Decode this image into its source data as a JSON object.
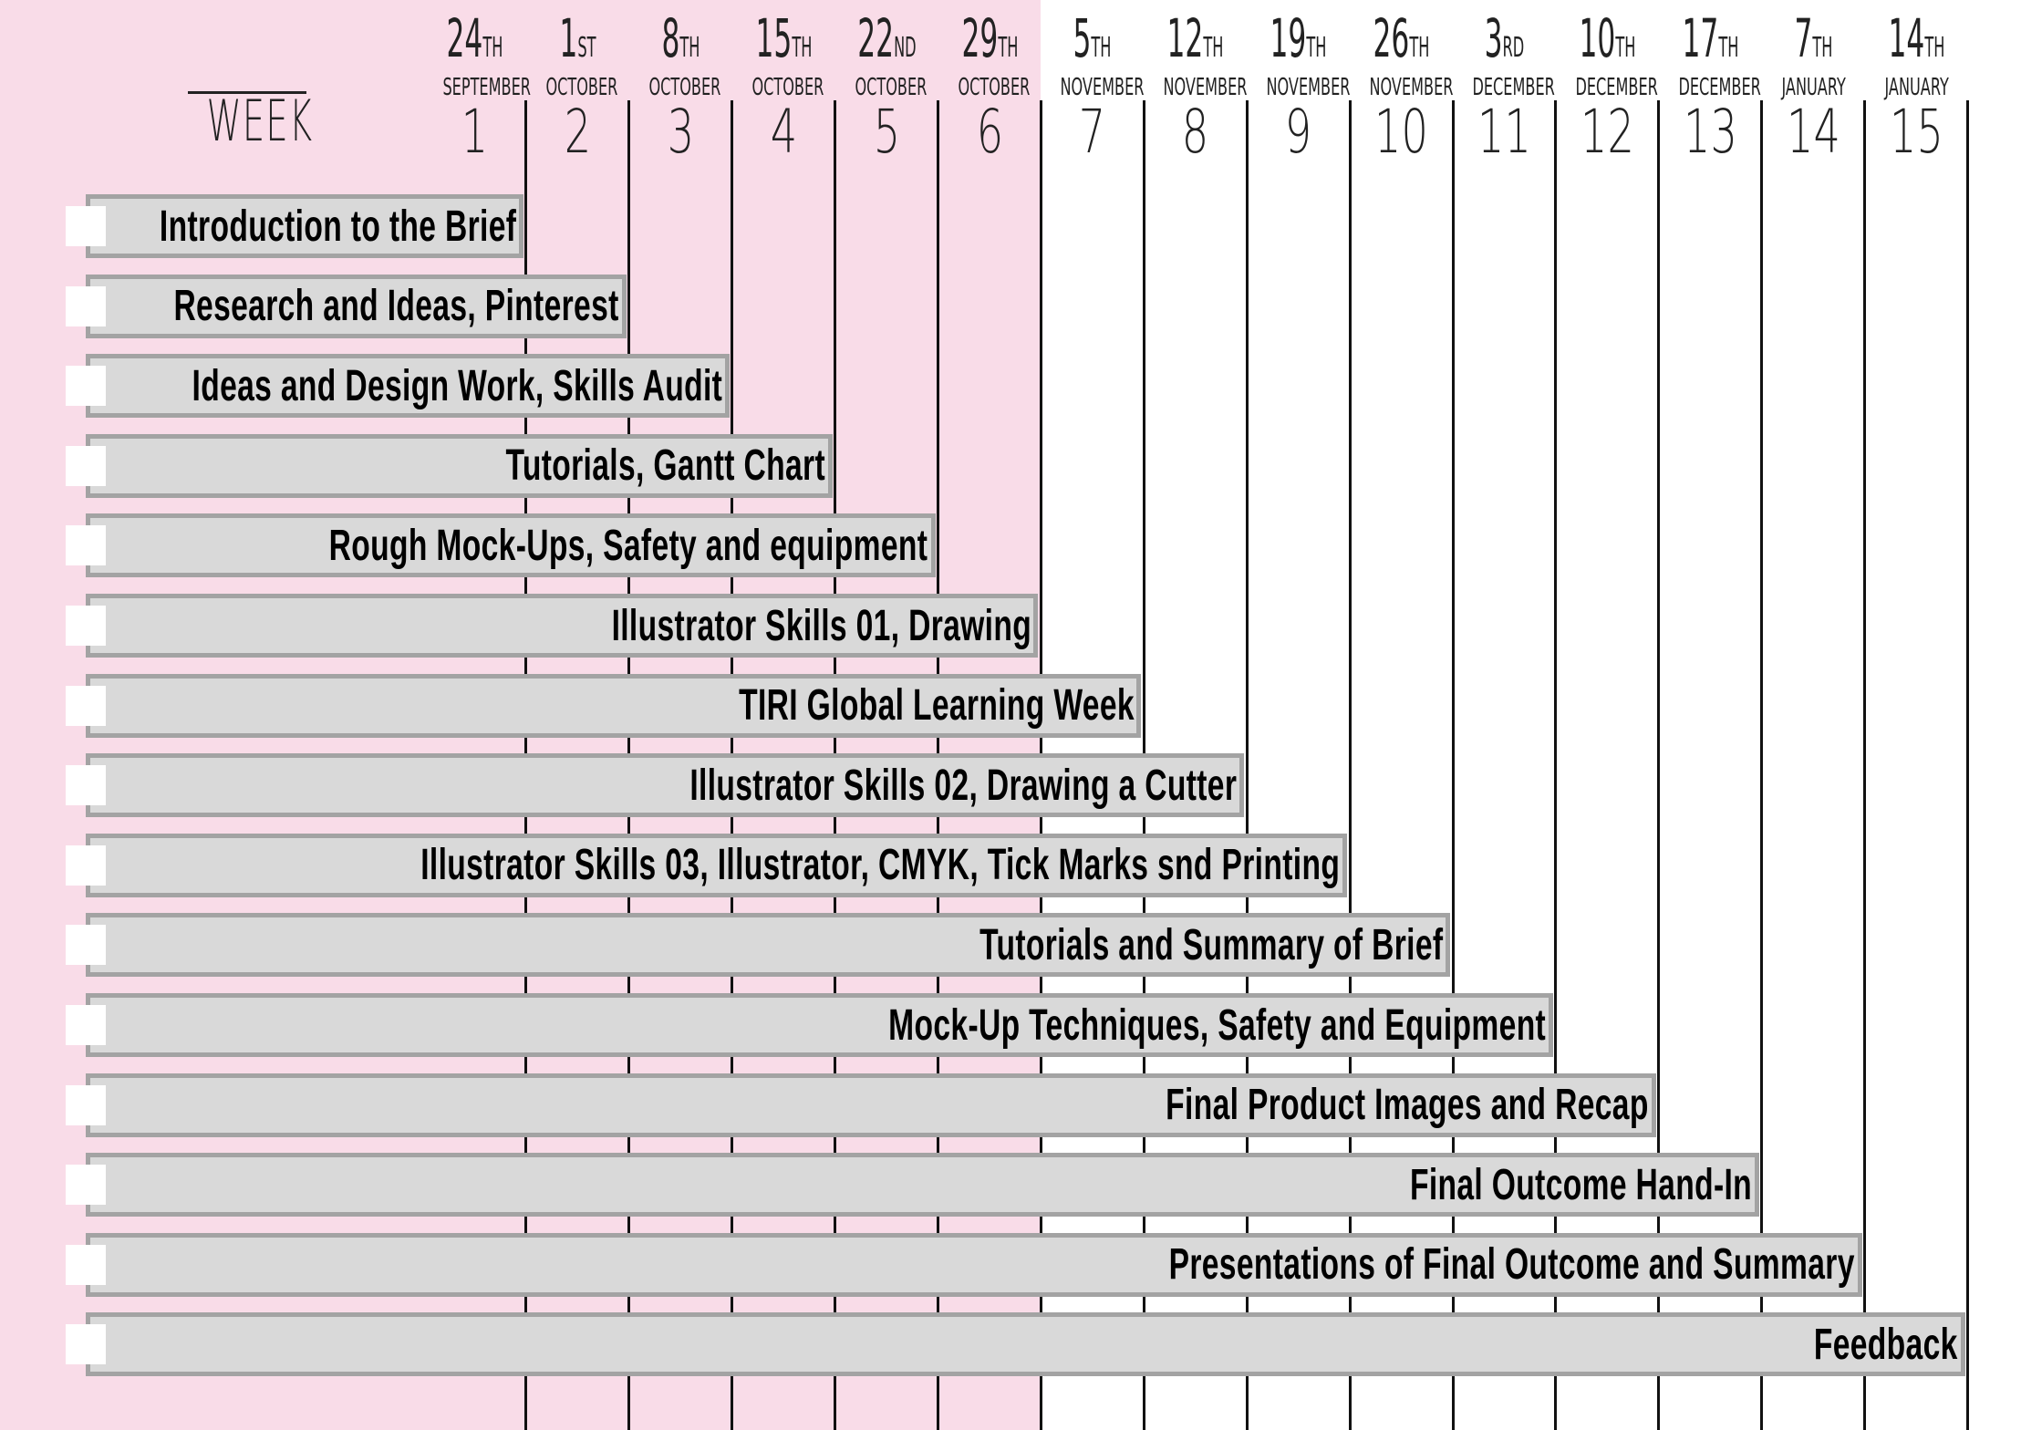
{
  "chart_data": {
    "type": "gantt",
    "colors": {
      "highlight_bg": "#f9dce8",
      "bar_fill": "#d9d9d9",
      "bar_border": "#a3a3a3",
      "gridline": "#111111"
    },
    "highlighted_weeks": [
      1,
      6
    ],
    "header": {
      "week_label": "WEEK"
    },
    "weeks": [
      {
        "week": "1",
        "day": "24",
        "suffix": "TH",
        "month": "SEPTEMBER"
      },
      {
        "week": "2",
        "day": "1",
        "suffix": "ST",
        "month": "OCTOBER"
      },
      {
        "week": "3",
        "day": "8",
        "suffix": "TH",
        "month": "OCTOBER"
      },
      {
        "week": "4",
        "day": "15",
        "suffix": "TH",
        "month": "OCTOBER"
      },
      {
        "week": "5",
        "day": "22",
        "suffix": "ND",
        "month": "OCTOBER"
      },
      {
        "week": "6",
        "day": "29",
        "suffix": "TH",
        "month": "OCTOBER"
      },
      {
        "week": "7",
        "day": "5",
        "suffix": "TH",
        "month": "NOVEMBER"
      },
      {
        "week": "8",
        "day": "12",
        "suffix": "TH",
        "month": "NOVEMBER"
      },
      {
        "week": "9",
        "day": "19",
        "suffix": "TH",
        "month": "NOVEMBER"
      },
      {
        "week": "10",
        "day": "26",
        "suffix": "TH",
        "month": "NOVEMBER"
      },
      {
        "week": "11",
        "day": "3",
        "suffix": "RD",
        "month": "DECEMBER"
      },
      {
        "week": "12",
        "day": "10",
        "suffix": "TH",
        "month": "DECEMBER"
      },
      {
        "week": "13",
        "day": "17",
        "suffix": "TH",
        "month": "DECEMBER"
      },
      {
        "week": "14",
        "day": "7",
        "suffix": "TH",
        "month": "JANUARY"
      },
      {
        "week": "15",
        "day": "14",
        "suffix": "TH",
        "month": "JANUARY"
      }
    ],
    "tasks": [
      {
        "label": "Introduction to the Brief",
        "end_week": 1,
        "completed": false
      },
      {
        "label": "Research and Ideas, Pinterest",
        "end_week": 2,
        "completed": false
      },
      {
        "label": "Ideas and Design Work, Skills Audit",
        "end_week": 3,
        "completed": false
      },
      {
        "label": "Tutorials, Gantt Chart",
        "end_week": 4,
        "completed": false
      },
      {
        "label": "Rough Mock-Ups, Safety and equipment",
        "end_week": 5,
        "completed": false
      },
      {
        "label": "Illustrator Skills 01, Drawing",
        "end_week": 6,
        "completed": false
      },
      {
        "label": "TIRI Global Learning Week",
        "end_week": 7,
        "completed": false
      },
      {
        "label": "Illustrator Skills 02, Drawing a Cutter",
        "end_week": 8,
        "completed": false
      },
      {
        "label": "Illustrator Skills 03, Illustrator, CMYK, Tick Marks snd Printing",
        "end_week": 9,
        "completed": false
      },
      {
        "label": "Tutorials and Summary of Brief",
        "end_week": 10,
        "completed": false
      },
      {
        "label": "Mock-Up Techniques, Safety and Equipment",
        "end_week": 11,
        "completed": false
      },
      {
        "label": "Final Product Images and Recap",
        "end_week": 12,
        "completed": false
      },
      {
        "label": "Final Outcome Hand-In",
        "end_week": 13,
        "completed": false
      },
      {
        "label": "Presentations of Final Outcome and Summary",
        "end_week": 14,
        "completed": false
      },
      {
        "label": "Feedback",
        "end_week": 15,
        "completed": false
      }
    ]
  }
}
